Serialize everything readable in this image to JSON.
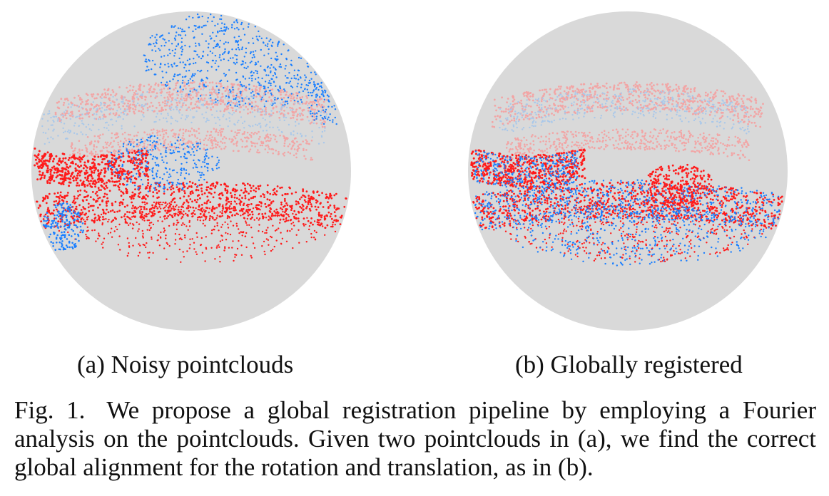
{
  "figure": {
    "panels": [
      {
        "id": "a",
        "subcaption": "(a) Noisy pointclouds",
        "state": "misaligned"
      },
      {
        "id": "b",
        "subcaption": "(b) Globally registered",
        "state": "aligned"
      }
    ],
    "colors": {
      "sphere": "#d9d9d9",
      "source_cloud": "#ff1a1a",
      "target_cloud": "#1a7fff",
      "source_faint": "#f2a5a5",
      "target_faint": "#a9c8ea"
    },
    "caption": {
      "label": "Fig. 1.",
      "line1": "We propose a global registration pipeline by employing a Fourier",
      "line2": "analysis on the pointclouds. Given two pointclouds in (a), we find the correct",
      "line3": "global alignment for the rotation and translation, as in (b)."
    }
  }
}
